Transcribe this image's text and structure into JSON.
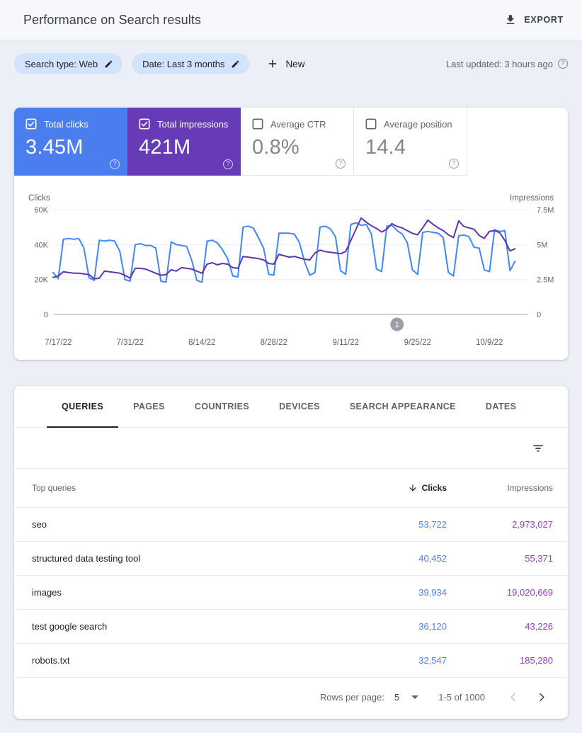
{
  "header": {
    "title": "Performance on Search results",
    "export_label": "EXPORT"
  },
  "filters": {
    "chips": [
      {
        "label": "Search type: Web"
      },
      {
        "label": "Date: Last 3 months"
      }
    ],
    "new_label": "New",
    "last_updated": "Last updated: 3 hours ago",
    "help_glyph": "?"
  },
  "metrics": [
    {
      "label": "Total clicks",
      "value": "3.45M",
      "checked": true,
      "bg": "#4a7dee",
      "fg": "#ffffff"
    },
    {
      "label": "Total impressions",
      "value": "421M",
      "checked": true,
      "bg": "#673ab7",
      "fg": "#ffffff"
    },
    {
      "label": "Average CTR",
      "value": "0.8%",
      "checked": false,
      "bg": "#ffffff",
      "fg": "#80868b"
    },
    {
      "label": "Average position",
      "value": "14.4",
      "checked": false,
      "bg": "#ffffff",
      "fg": "#80868b"
    }
  ],
  "chart_data": {
    "type": "line",
    "left_axis": {
      "label": "Clicks",
      "tick_labels": [
        "60K",
        "40K",
        "20K",
        "0"
      ],
      "tick_values": [
        60000,
        40000,
        20000,
        0
      ],
      "max": 60000
    },
    "right_axis": {
      "label": "Impressions",
      "tick_labels": [
        "7.5M",
        "5M",
        "2.5M",
        "0"
      ],
      "tick_values": [
        7500000,
        5000000,
        2500000,
        0
      ],
      "max": 7500000
    },
    "x_tick_labels": [
      "7/17/22",
      "7/31/22",
      "8/14/22",
      "8/28/22",
      "9/11/22",
      "9/25/22",
      "10/9/22"
    ],
    "x_tick_day_indexes": [
      1,
      15,
      29,
      43,
      57,
      71,
      85
    ],
    "annotation": {
      "label": "1",
      "day_index": 67,
      "color": "#9aa0a6"
    },
    "grid": true,
    "legend_position": "none",
    "series": [
      {
        "name": "Clicks",
        "axis": "left",
        "color": "#4285f4",
        "values": [
          24000,
          20500,
          43000,
          43500,
          43000,
          43500,
          38000,
          21000,
          19500,
          42500,
          42000,
          42500,
          42000,
          36000,
          20000,
          19000,
          40000,
          40500,
          39500,
          39500,
          38000,
          19000,
          18500,
          41500,
          40000,
          39500,
          39000,
          31000,
          19500,
          18500,
          42000,
          42500,
          41000,
          37000,
          32000,
          22000,
          21500,
          50000,
          50500,
          49500,
          44000,
          38000,
          23000,
          22500,
          46500,
          46500,
          46500,
          46000,
          41000,
          30000,
          22500,
          24000,
          50000,
          50500,
          49000,
          44500,
          25000,
          23000,
          51500,
          52500,
          51000,
          51500,
          46000,
          26000,
          24500,
          50500,
          51000,
          48000,
          46000,
          41000,
          25500,
          23000,
          47000,
          47500,
          47000,
          46500,
          44000,
          24000,
          22000,
          45000,
          45500,
          44500,
          38500,
          38000,
          25500,
          24500,
          48500,
          47500,
          48000,
          25000,
          30500
        ]
      },
      {
        "name": "Impressions",
        "axis": "right",
        "color": "#5e35b1",
        "values": [
          2650000,
          2750000,
          3050000,
          3000000,
          2950000,
          2950000,
          2900000,
          2850000,
          2550000,
          2600000,
          3100000,
          3050000,
          3000000,
          2950000,
          2800000,
          2600000,
          3300000,
          3300000,
          3250000,
          3100000,
          2950000,
          2800000,
          2850000,
          3200000,
          3100000,
          3350000,
          3300000,
          3250000,
          3100000,
          2950000,
          3600000,
          3700000,
          3550000,
          3650000,
          3600000,
          3350000,
          3300000,
          4150000,
          4100000,
          4050000,
          4000000,
          3900000,
          3650000,
          3600000,
          4300000,
          4200000,
          4100000,
          4150000,
          4050000,
          3950000,
          3900000,
          4400000,
          4600000,
          4500000,
          4450000,
          4400000,
          4350000,
          4500000,
          5300000,
          6100000,
          6900000,
          6600000,
          6350000,
          6150000,
          5900000,
          6100000,
          6500000,
          6300000,
          6200000,
          6000000,
          5800000,
          5700000,
          6200000,
          6750000,
          6450000,
          6200000,
          6000000,
          5700000,
          5500000,
          6700000,
          6300000,
          6200000,
          6100000,
          5650000,
          5450000,
          5950000,
          6000000,
          5850000,
          5300000,
          4550000,
          4700000
        ]
      }
    ]
  },
  "tabs": [
    {
      "label": "QUERIES",
      "active": true
    },
    {
      "label": "PAGES",
      "active": false
    },
    {
      "label": "COUNTRIES",
      "active": false
    },
    {
      "label": "DEVICES",
      "active": false
    },
    {
      "label": "SEARCH APPEARANCE",
      "active": false
    },
    {
      "label": "DATES",
      "active": false
    }
  ],
  "table": {
    "columns": {
      "dimension": "Top queries",
      "clicks": "Clicks",
      "impressions": "Impressions"
    },
    "sort": {
      "column": "clicks",
      "direction": "desc"
    },
    "rows": [
      {
        "query": "seo",
        "clicks": "53,722",
        "impressions": "2,973,027"
      },
      {
        "query": "structured data testing tool",
        "clicks": "40,452",
        "impressions": "55,371"
      },
      {
        "query": "images",
        "clicks": "39,934",
        "impressions": "19,020,669"
      },
      {
        "query": "test google search",
        "clicks": "36,120",
        "impressions": "43,226"
      },
      {
        "query": "robots.txt",
        "clicks": "32,547",
        "impressions": "185,280"
      }
    ],
    "pagination": {
      "rows_per_page_label": "Rows per page:",
      "rows_per_page": "5",
      "range": "1-5 of 1000"
    }
  },
  "icons": {
    "export": "download-icon",
    "chip_edit": "pencil-icon",
    "new": "plus-icon",
    "help": "question-circle-icon",
    "metric_checkbox": "checkbox-icon",
    "filter": "funnel-icon",
    "sort_desc": "arrow-down-icon",
    "rows_caret": "caret-down-icon",
    "prev": "chevron-left-icon",
    "next": "chevron-right-icon",
    "annotation": "numbered-circle-marker"
  },
  "colors": {
    "page_bg": "#edeff7",
    "chip_bg": "#d2e3fc",
    "clicks_accent": "#4a7dee",
    "impressions_accent": "#673ab7",
    "clicks_line": "#4285f4",
    "impressions_line": "#5e35b1",
    "clicks_cell_text": "#4d82ec",
    "impressions_cell_text": "#963cc8",
    "annotation_gray": "#9aa0a6"
  }
}
